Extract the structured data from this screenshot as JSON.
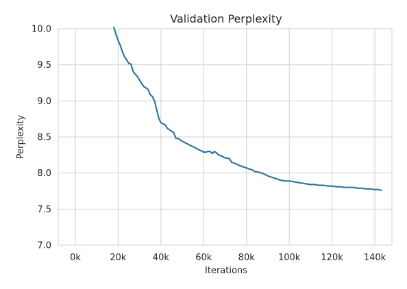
{
  "chart_data": {
    "type": "line",
    "title": "Validation Perplexity",
    "xlabel": "Iterations",
    "ylabel": "Perplexity",
    "xlim": [
      -8000,
      148000
    ],
    "ylim": [
      7.0,
      10.0
    ],
    "xticks": [
      0,
      20000,
      40000,
      60000,
      80000,
      100000,
      120000,
      140000
    ],
    "xtick_labels": [
      "0k",
      "20k",
      "40k",
      "60k",
      "80k",
      "100k",
      "120k",
      "140k"
    ],
    "yticks": [
      7.0,
      7.5,
      8.0,
      8.5,
      9.0,
      9.5,
      10.0
    ],
    "ytick_labels": [
      "7.0",
      "7.5",
      "8.0",
      "8.5",
      "9.0",
      "9.5",
      "10.0"
    ],
    "grid": true,
    "colors": {
      "line": "#3274a1",
      "grid": "#d0d0d0",
      "text": "#262626"
    },
    "series": [
      {
        "x": [
          18000,
          19000,
          20000,
          21000,
          22000,
          23000,
          24000,
          25000,
          26000,
          27000,
          28000,
          29000,
          30000,
          31000,
          32000,
          33000,
          34000,
          35000,
          36000,
          37000,
          38000,
          39000,
          40000,
          41000,
          42000,
          43000,
          44000,
          45000,
          46000,
          47000,
          48000,
          50000,
          52000,
          54000,
          56000,
          58000,
          60000,
          61000,
          62000,
          63000,
          64000,
          65000,
          66000,
          67000,
          68000,
          70000,
          72000,
          73000,
          75000,
          77000,
          79000,
          81000,
          83000,
          84000,
          86000,
          88000,
          90000,
          92000,
          94000,
          96000,
          98000,
          100000,
          102000,
          104000,
          106000,
          108000,
          110000,
          112000,
          114000,
          116000,
          118000,
          120000,
          122000,
          124000,
          126000,
          128000,
          130000,
          132000,
          134000,
          136000,
          138000,
          140000,
          142000,
          143000
        ],
        "y": [
          10.02,
          9.92,
          9.84,
          9.77,
          9.68,
          9.61,
          9.57,
          9.52,
          9.51,
          9.41,
          9.37,
          9.34,
          9.29,
          9.24,
          9.2,
          9.18,
          9.16,
          9.09,
          9.06,
          9.0,
          8.88,
          8.76,
          8.7,
          8.68,
          8.67,
          8.62,
          8.6,
          8.58,
          8.56,
          8.48,
          8.48,
          8.44,
          8.41,
          8.38,
          8.35,
          8.32,
          8.29,
          8.29,
          8.3,
          8.3,
          8.27,
          8.3,
          8.28,
          8.25,
          8.24,
          8.21,
          8.2,
          8.15,
          8.13,
          8.1,
          8.08,
          8.06,
          8.04,
          8.02,
          8.01,
          7.99,
          7.96,
          7.94,
          7.92,
          7.9,
          7.89,
          7.89,
          7.88,
          7.87,
          7.86,
          7.85,
          7.84,
          7.84,
          7.83,
          7.83,
          7.82,
          7.82,
          7.81,
          7.81,
          7.8,
          7.8,
          7.8,
          7.79,
          7.79,
          7.78,
          7.78,
          7.77,
          7.77,
          7.76
        ]
      }
    ]
  }
}
